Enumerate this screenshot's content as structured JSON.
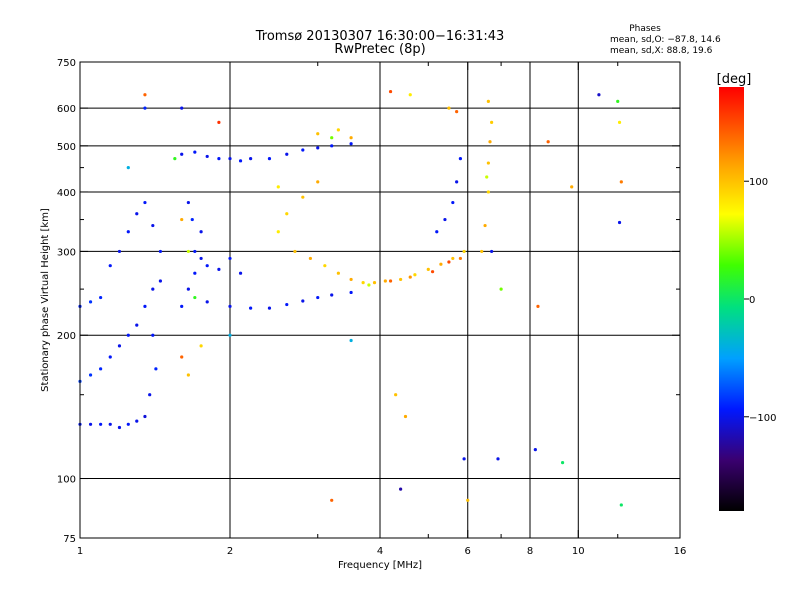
{
  "title": {
    "line1": "Tromsø 20130307 16:30:00−16:31:43",
    "line2": "RwPretec (8p)"
  },
  "phases": {
    "header": "Phases",
    "line_o": "mean, sd,O: −87.8, 14.6",
    "line_x": "mean, sd,X: 88.8, 19.6"
  },
  "colorbar": {
    "unit_label": "[deg]",
    "ticks": [
      {
        "value": 100,
        "label": "100"
      },
      {
        "value": 0,
        "label": "0"
      },
      {
        "value": -100,
        "label": "−100"
      }
    ],
    "range": [
      -180,
      180
    ]
  },
  "chart_data": {
    "type": "scatter",
    "xlabel": "Frequency [MHz]",
    "ylabel": "Stationary phase Virtual Height [km]",
    "x_scale": "log",
    "y_scale": "log",
    "xlim": [
      1,
      16
    ],
    "ylim": [
      75,
      750
    ],
    "grid": true,
    "x_ticks": [
      {
        "value": 1,
        "label": "1"
      },
      {
        "value": 2,
        "label": "2"
      },
      {
        "value": 4,
        "label": "4"
      },
      {
        "value": 6,
        "label": "6"
      },
      {
        "value": 8,
        "label": "8"
      },
      {
        "value": 10,
        "label": "10"
      },
      {
        "value": 16,
        "label": "16"
      }
    ],
    "x_minor": [
      3,
      5,
      7,
      12
    ],
    "y_ticks": [
      {
        "value": 75,
        "label": "75"
      },
      {
        "value": 100,
        "label": "100"
      },
      {
        "value": 200,
        "label": "200"
      },
      {
        "value": 300,
        "label": "300"
      },
      {
        "value": 400,
        "label": "400"
      },
      {
        "value": 500,
        "label": "500"
      },
      {
        "value": 600,
        "label": "600"
      },
      {
        "value": 750,
        "label": "750"
      }
    ],
    "y_minor": [
      150,
      250,
      350,
      450
    ],
    "color_meaning": "phase [deg]",
    "series": [
      {
        "points": [
          [
            1.0,
            130,
            -95
          ],
          [
            1.05,
            130,
            -100
          ],
          [
            1.1,
            130,
            -95
          ],
          [
            1.15,
            130,
            -100
          ],
          [
            1.2,
            128,
            -100
          ],
          [
            1.25,
            130,
            -95
          ],
          [
            1.3,
            132,
            -100
          ],
          [
            1.35,
            135,
            -105
          ],
          [
            1.0,
            160,
            -80
          ],
          [
            1.05,
            165,
            -85
          ],
          [
            1.1,
            170,
            -90
          ],
          [
            1.15,
            180,
            -95
          ],
          [
            1.2,
            190,
            -100
          ],
          [
            1.25,
            200,
            -95
          ],
          [
            1.3,
            210,
            -100
          ],
          [
            1.35,
            230,
            -95
          ],
          [
            1.4,
            250,
            -100
          ],
          [
            1.0,
            230,
            -90
          ],
          [
            1.05,
            235,
            -85
          ],
          [
            1.1,
            240,
            -90
          ],
          [
            1.15,
            280,
            -95
          ],
          [
            1.2,
            300,
            -100
          ],
          [
            1.25,
            330,
            -95
          ],
          [
            1.3,
            360,
            -100
          ],
          [
            1.35,
            380,
            -95
          ],
          [
            1.4,
            340,
            -100
          ],
          [
            1.45,
            300,
            -95
          ],
          [
            1.45,
            260,
            -100
          ],
          [
            1.4,
            200,
            -95
          ],
          [
            1.38,
            150,
            -100
          ],
          [
            1.42,
            170,
            -90
          ],
          [
            1.6,
            480,
            -100
          ],
          [
            1.7,
            485,
            -95
          ],
          [
            1.8,
            475,
            -100
          ],
          [
            1.9,
            470,
            -95
          ],
          [
            2.0,
            470,
            -100
          ],
          [
            2.1,
            465,
            -95
          ],
          [
            2.2,
            470,
            -100
          ],
          [
            2.4,
            470,
            -95
          ],
          [
            2.6,
            480,
            -100
          ],
          [
            2.8,
            490,
            -95
          ],
          [
            3.0,
            495,
            -100
          ],
          [
            3.2,
            500,
            -95
          ],
          [
            3.5,
            505,
            -95
          ],
          [
            1.65,
            380,
            -100
          ],
          [
            1.7,
            300,
            -95
          ],
          [
            1.75,
            290,
            -100
          ],
          [
            1.8,
            280,
            -95
          ],
          [
            1.9,
            275,
            -100
          ],
          [
            2.0,
            290,
            -95
          ],
          [
            2.1,
            270,
            -100
          ],
          [
            1.8,
            235,
            -100
          ],
          [
            2.0,
            230,
            -100
          ],
          [
            2.2,
            228,
            -95
          ],
          [
            2.4,
            228,
            -100
          ],
          [
            2.6,
            232,
            -95
          ],
          [
            2.8,
            236,
            -100
          ],
          [
            3.0,
            240,
            -95
          ],
          [
            3.2,
            243,
            -100
          ],
          [
            3.5,
            246,
            -95
          ],
          [
            5.2,
            330,
            -95
          ],
          [
            5.4,
            350,
            -100
          ],
          [
            5.6,
            380,
            -95
          ],
          [
            5.7,
            420,
            -100
          ],
          [
            5.8,
            470,
            -95
          ],
          [
            1.65,
            250,
            -100
          ],
          [
            1.7,
            270,
            -95
          ],
          [
            1.75,
            330,
            -100
          ],
          [
            1.6,
            230,
            -95
          ],
          [
            1.68,
            350,
            -90
          ]
        ]
      },
      {
        "points": [
          [
            1.6,
            350,
            110
          ],
          [
            1.65,
            300,
            60
          ],
          [
            1.7,
            240,
            20
          ],
          [
            1.6,
            180,
            140
          ],
          [
            1.65,
            165,
            100
          ],
          [
            1.75,
            190,
            90
          ],
          [
            2.5,
            330,
            80
          ],
          [
            2.7,
            300,
            100
          ],
          [
            2.9,
            290,
            110
          ],
          [
            3.1,
            280,
            90
          ],
          [
            3.3,
            270,
            100
          ],
          [
            3.5,
            262,
            110
          ],
          [
            3.7,
            258,
            90
          ],
          [
            3.9,
            258,
            100
          ],
          [
            4.1,
            260,
            110
          ],
          [
            4.4,
            262,
            100
          ],
          [
            4.7,
            268,
            90
          ],
          [
            5.0,
            275,
            100
          ],
          [
            5.3,
            282,
            110
          ],
          [
            5.6,
            290,
            100
          ],
          [
            5.9,
            300,
            90
          ],
          [
            3.8,
            255,
            60
          ],
          [
            4.2,
            260,
            140
          ],
          [
            4.6,
            265,
            120
          ],
          [
            5.1,
            272,
            150
          ],
          [
            5.8,
            290,
            130
          ],
          [
            5.5,
            285,
            150
          ],
          [
            6.4,
            300,
            100
          ],
          [
            6.5,
            340,
            110
          ],
          [
            6.6,
            400,
            90
          ],
          [
            6.6,
            460,
            100
          ],
          [
            6.65,
            510,
            110
          ],
          [
            6.7,
            560,
            95
          ],
          [
            6.6,
            620,
            100
          ],
          [
            6.55,
            430,
            60
          ],
          [
            2.6,
            360,
            90
          ],
          [
            2.8,
            390,
            100
          ],
          [
            3.0,
            420,
            110
          ],
          [
            2.5,
            410,
            80
          ],
          [
            3.0,
            530,
            100
          ],
          [
            3.3,
            540,
            90
          ],
          [
            3.5,
            520,
            110
          ],
          [
            5.5,
            600,
            100
          ],
          [
            5.7,
            590,
            140
          ],
          [
            1.35,
            640,
            140
          ],
          [
            1.9,
            560,
            160
          ],
          [
            4.2,
            650,
            150
          ],
          [
            4.6,
            640,
            80
          ],
          [
            3.2,
            520,
            40
          ]
        ]
      },
      {
        "points": [
          [
            1.35,
            600,
            -90
          ],
          [
            1.6,
            600,
            -100
          ],
          [
            11,
            640,
            -110
          ],
          [
            12,
            620,
            20
          ],
          [
            8.2,
            115,
            -100
          ],
          [
            9.3,
            108,
            0
          ],
          [
            6.9,
            110,
            -100
          ],
          [
            12.2,
            88,
            0
          ],
          [
            6.0,
            90,
            100
          ],
          [
            4.4,
            95,
            -120
          ],
          [
            3.2,
            90,
            140
          ],
          [
            6.7,
            300,
            -100
          ],
          [
            7.0,
            250,
            40
          ],
          [
            8.7,
            510,
            140
          ],
          [
            9.7,
            410,
            110
          ],
          [
            12.1,
            345,
            -100
          ],
          [
            12.2,
            420,
            130
          ],
          [
            12.1,
            560,
            80
          ],
          [
            1.25,
            450,
            -40
          ],
          [
            1.55,
            470,
            20
          ],
          [
            2.0,
            200,
            -40
          ],
          [
            3.5,
            195,
            -40
          ],
          [
            4.3,
            150,
            100
          ],
          [
            4.5,
            135,
            110
          ],
          [
            5.9,
            110,
            -100
          ],
          [
            8.3,
            230,
            140
          ]
        ]
      }
    ]
  }
}
